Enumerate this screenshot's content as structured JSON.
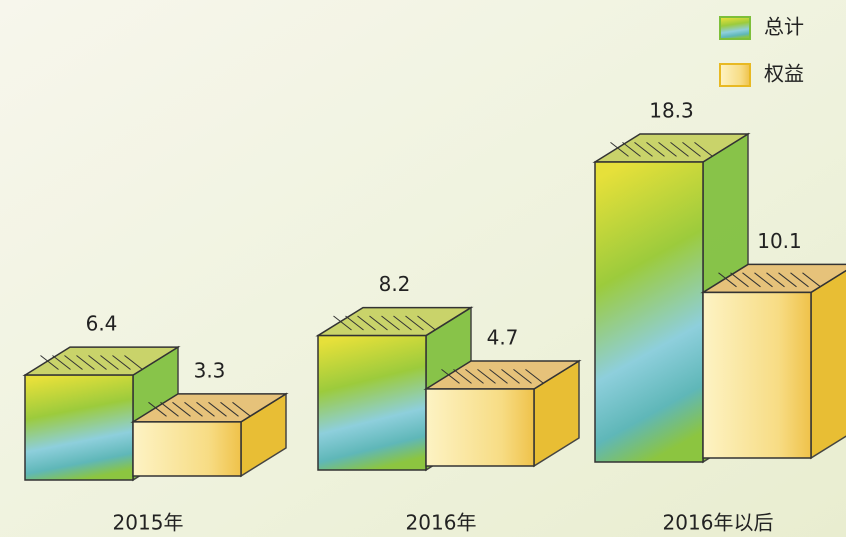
{
  "chart_data": {
    "type": "bar3d",
    "categories": [
      "2015年",
      "2016年",
      "2016年以后"
    ],
    "series": [
      {
        "name": "总计",
        "color": "#7dbf3a",
        "values": [
          6.4,
          8.2,
          18.3
        ]
      },
      {
        "name": "权益",
        "color": "#e8b923",
        "values": [
          3.3,
          4.7,
          10.1
        ]
      }
    ]
  }
}
